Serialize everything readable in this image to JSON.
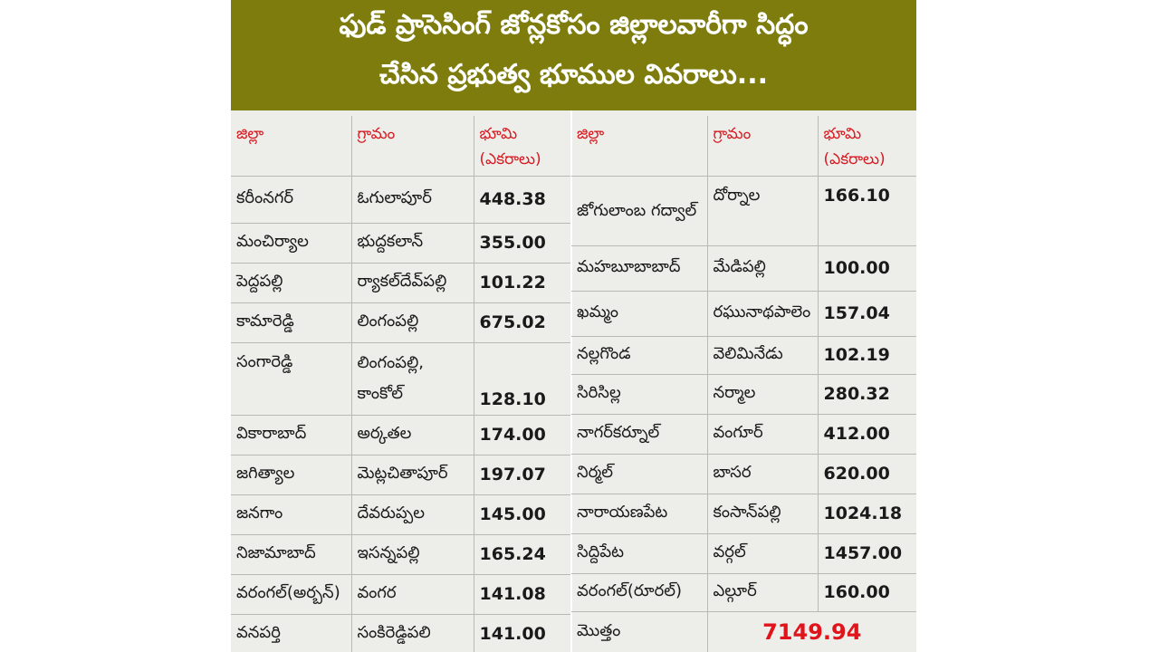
{
  "title": {
    "line1": "ఫుడ్ ప్రాసెసింగ్ జోన్లకోసం జిల్లాలవారీగా సిద్ధం",
    "line2": "చేసిన ప్రభుత్వ భూముల వివరాలు..."
  },
  "headers": {
    "district": "జిల్లా",
    "village": "గ్రామం",
    "land": "భూమి (ఎకరాలు)"
  },
  "left_rows": [
    {
      "district": "కరీంనగర్",
      "village": "ఓగులాపూర్",
      "land": "448.38"
    },
    {
      "district": "మంచిర్యాల",
      "village": "భుద్దకలాన్",
      "land": "355.00"
    },
    {
      "district": "పెద్దపల్లి",
      "village": "ర్యాకల్‌దేవ్‌పల్లి",
      "land": "101.22"
    },
    {
      "district": "కామారెడ్డి",
      "village": "లింగంపల్లి",
      "land": "675.02"
    },
    {
      "district": "సంగారెడ్డి",
      "village": "లింగంపల్లి, కాంకోల్",
      "land": "128.10"
    },
    {
      "district": "వికారాబాద్",
      "village": "అర్కతల",
      "land": "174.00"
    },
    {
      "district": "జగిత్యాల",
      "village": "మెట్లచితాపూర్",
      "land": "197.07"
    },
    {
      "district": "జనగాం",
      "village": "దేవరుప్పల",
      "land": "145.00"
    },
    {
      "district": "నిజామాబాద్",
      "village": "ఇసన్నపల్లి",
      "land": "165.24"
    },
    {
      "district": "వరంగల్(అర్బన్)",
      "village": "వంగర",
      "land": "141.08"
    },
    {
      "district": "వనపర్తి",
      "village": "సంకిరెడ్డిపలి",
      "land": "141.00"
    }
  ],
  "right_rows": [
    {
      "district": "జోగులాంబ గద్వాల్",
      "village": "దోర్నాల",
      "land": "166.10"
    },
    {
      "district": "మహబూబాబాద్",
      "village": "మేడిపల్లి",
      "land": "100.00"
    },
    {
      "district": "ఖమ్మం",
      "village": "రఘునాథపాలెం",
      "land": "157.04"
    },
    {
      "district": "నల్లగొండ",
      "village": "వెలిమినేడు",
      "land": "102.19"
    },
    {
      "district": "సిరిసిల్ల",
      "village": "నర్మాల",
      "land": "280.32"
    },
    {
      "district": "నాగర్‌కర్నూల్",
      "village": "వంగూర్",
      "land": "412.00"
    },
    {
      "district": "నిర్మల్",
      "village": "బాసర",
      "land": "620.00"
    },
    {
      "district": "నారాయణపేట",
      "village": "కంసాన్‌పల్లి",
      "land": "1024.18"
    },
    {
      "district": "సిద్దిపేట",
      "village": "వర్గల్",
      "land": "1457.00"
    },
    {
      "district": "వరంగల్(రూరల్)",
      "village": "ఎల్గూర్",
      "land": "160.00"
    }
  ],
  "total": {
    "label": "మొత్తం",
    "value": "7149.94"
  },
  "colors": {
    "banner": "#7d7c0d",
    "header_text": "#d71920",
    "total_value": "#e0151c",
    "table_bg": "#ededea"
  }
}
